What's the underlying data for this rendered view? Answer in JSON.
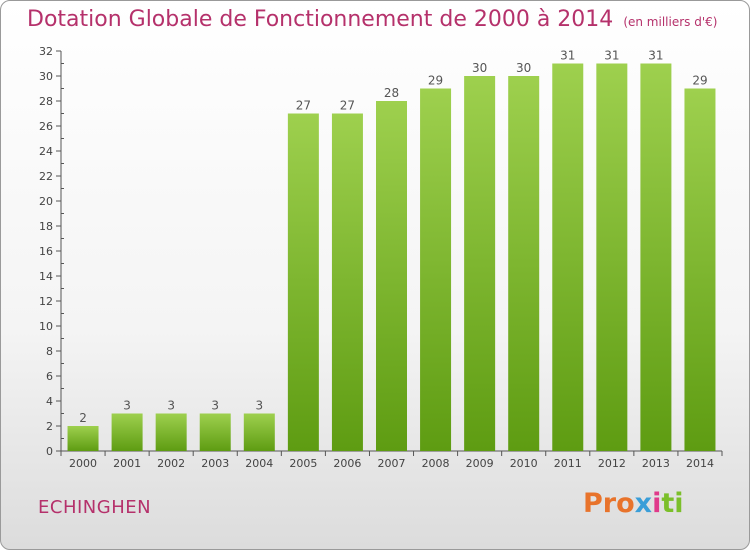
{
  "header": {
    "title": "Dotation Globale de Fonctionnement de 2000 à 2014",
    "unit": "(en milliers d'€)"
  },
  "footer": {
    "commune": "ECHINGHEN",
    "logo_parts": [
      "Pro",
      "x",
      "i",
      "ti"
    ]
  },
  "colors": {
    "title": "#b5316b",
    "bar_top": "#9ed04e",
    "bar_bottom": "#5e9c12",
    "axis": "#555555"
  },
  "chart_data": {
    "type": "bar",
    "title": "Dotation Globale de Fonctionnement de 2000 à 2014",
    "subtitle": "(en milliers d'€)",
    "xlabel": "",
    "ylabel": "",
    "categories": [
      "2000",
      "2001",
      "2002",
      "2003",
      "2004",
      "2005",
      "2006",
      "2007",
      "2008",
      "2009",
      "2010",
      "2011",
      "2012",
      "2013",
      "2014"
    ],
    "values": [
      2,
      3,
      3,
      3,
      3,
      27,
      27,
      28,
      29,
      30,
      30,
      31,
      31,
      31,
      29
    ],
    "data_labels": [
      "2",
      "3",
      "3",
      "3",
      "3",
      "27",
      "27",
      "28",
      "29",
      "30",
      "30",
      "31",
      "31",
      "31",
      "29"
    ],
    "ylim": [
      0,
      32
    ],
    "yticks": [
      "0",
      "2",
      "4",
      "6",
      "8",
      "10",
      "12",
      "14",
      "16",
      "18",
      "20",
      "22",
      "24",
      "26",
      "28",
      "30",
      "32"
    ],
    "grid": false,
    "legend": "none"
  }
}
